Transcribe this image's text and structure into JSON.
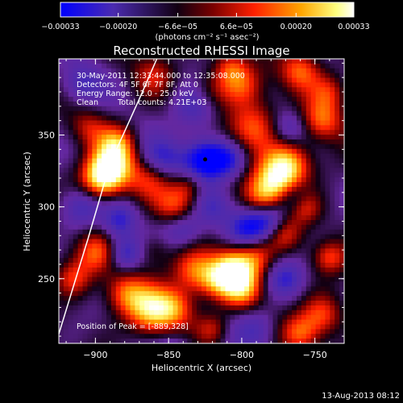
{
  "chart_data": {
    "type": "heatmap",
    "title": "Reconstructed RHESSI Image",
    "xlabel": "Heliocentric X (arcsec)",
    "ylabel": "Heliocentric Y (arcsec)",
    "xlim": [
      -925,
      -730
    ],
    "ylim": [
      205,
      403
    ],
    "xticks": [
      -900,
      -850,
      -800,
      -750
    ],
    "yticks": [
      250,
      300,
      350
    ],
    "xtick_labels": [
      "−900",
      "−850",
      "−800",
      "−750"
    ],
    "ytick_labels": [
      "250",
      "300",
      "350"
    ],
    "colorbar": {
      "range": [
        -0.00033,
        0.00033
      ],
      "ticks": [
        -0.00033,
        -0.0002,
        -6.6e-05,
        6.6e-05,
        0.0002,
        0.00033
      ],
      "tick_labels": [
        "−0.00033",
        "−0.00020",
        "−6.6e−05",
        "6.6e−05",
        "0.00020",
        "0.00033"
      ],
      "unit_label": "(photons cm⁻² s⁻¹ asec⁻²)",
      "colors": [
        "#0000ff",
        "#4b2bb0",
        "#120012",
        "#7a0000",
        "#ff2000",
        "#ffa500",
        "#ffff80",
        "#ffffff"
      ]
    },
    "annotations": [
      "30-May-2011 12:33:44.000 to 12:35:08.000",
      "Detectors: 4F 5F 6F 7F 8F, Att 0",
      "Energy Range: 12.0 - 25.0 keV",
      "Clean",
      "Total counts: 4.21E+03"
    ],
    "peak_label": "Position of Peak = [-889,328]",
    "peak_marker": [
      -825,
      333
    ],
    "limb_curve": [
      [
        -927,
        205
      ],
      [
        -905,
        278
      ],
      [
        -890,
        330
      ],
      [
        -870,
        375
      ],
      [
        -858,
        403
      ]
    ],
    "hot_sources": [
      [
        -889,
        328,
        1.0,
        11
      ],
      [
        -897,
        318,
        0.8,
        10
      ],
      [
        -885,
        345,
        0.55,
        9
      ],
      [
        -862,
        228,
        0.85,
        12
      ],
      [
        -880,
        240,
        0.55,
        10
      ],
      [
        -845,
        230,
        0.55,
        10
      ],
      [
        -833,
        255,
        0.7,
        11
      ],
      [
        -818,
        248,
        0.45,
        9
      ],
      [
        -806,
        257,
        0.95,
        10
      ],
      [
        -800,
        243,
        0.7,
        10
      ],
      [
        -790,
        265,
        0.5,
        9
      ],
      [
        -777,
        318,
        0.85,
        11
      ],
      [
        -768,
        330,
        0.8,
        11
      ],
      [
        -786,
        306,
        0.5,
        9
      ],
      [
        -793,
        355,
        0.7,
        13
      ],
      [
        -800,
        385,
        0.5,
        10
      ],
      [
        -808,
        397,
        0.45,
        8
      ],
      [
        -772,
        282,
        0.55,
        9
      ],
      [
        -757,
        300,
        0.5,
        8
      ],
      [
        -845,
        300,
        0.6,
        10
      ],
      [
        -836,
        315,
        0.45,
        8
      ],
      [
        -862,
        320,
        0.4,
        10
      ],
      [
        -745,
        360,
        0.6,
        10
      ],
      [
        -760,
        395,
        0.65,
        10
      ],
      [
        -740,
        380,
        0.45,
        9
      ],
      [
        -745,
        225,
        0.6,
        10
      ],
      [
        -760,
        212,
        0.55,
        9
      ],
      [
        -740,
        265,
        0.5,
        8
      ],
      [
        -820,
        215,
        0.45,
        8
      ],
      [
        -900,
        268,
        0.55,
        10
      ],
      [
        -915,
        250,
        0.5,
        9
      ],
      [
        -876,
        287,
        0.35,
        8
      ],
      [
        -860,
        392,
        0.35,
        10
      ],
      [
        -822,
        380,
        0.4,
        10
      ],
      [
        -905,
        355,
        0.35,
        9
      ],
      [
        -860,
        270,
        0.3,
        8
      ]
    ],
    "cold_sources": [
      [
        -825,
        333,
        0.9,
        11
      ],
      [
        -808,
        333,
        0.55,
        9
      ],
      [
        -855,
        333,
        0.5,
        10
      ],
      [
        -881,
        289,
        0.75,
        9
      ],
      [
        -840,
        285,
        0.6,
        10
      ],
      [
        -880,
        267,
        0.55,
        8
      ],
      [
        -796,
        285,
        0.55,
        9
      ],
      [
        -781,
        290,
        0.7,
        9
      ],
      [
        -764,
        306,
        0.45,
        8
      ],
      [
        -832,
        370,
        0.55,
        11
      ],
      [
        -768,
        355,
        0.45,
        9
      ],
      [
        -910,
        300,
        0.5,
        10
      ],
      [
        -820,
        300,
        0.4,
        9
      ],
      [
        -770,
        250,
        0.45,
        9
      ],
      [
        -845,
        200,
        0.4,
        10
      ],
      [
        -910,
        385,
        0.45,
        10
      ],
      [
        -790,
        215,
        0.4,
        10
      ]
    ]
  },
  "footer": {
    "date": "13-Aug-2013 08:12"
  }
}
